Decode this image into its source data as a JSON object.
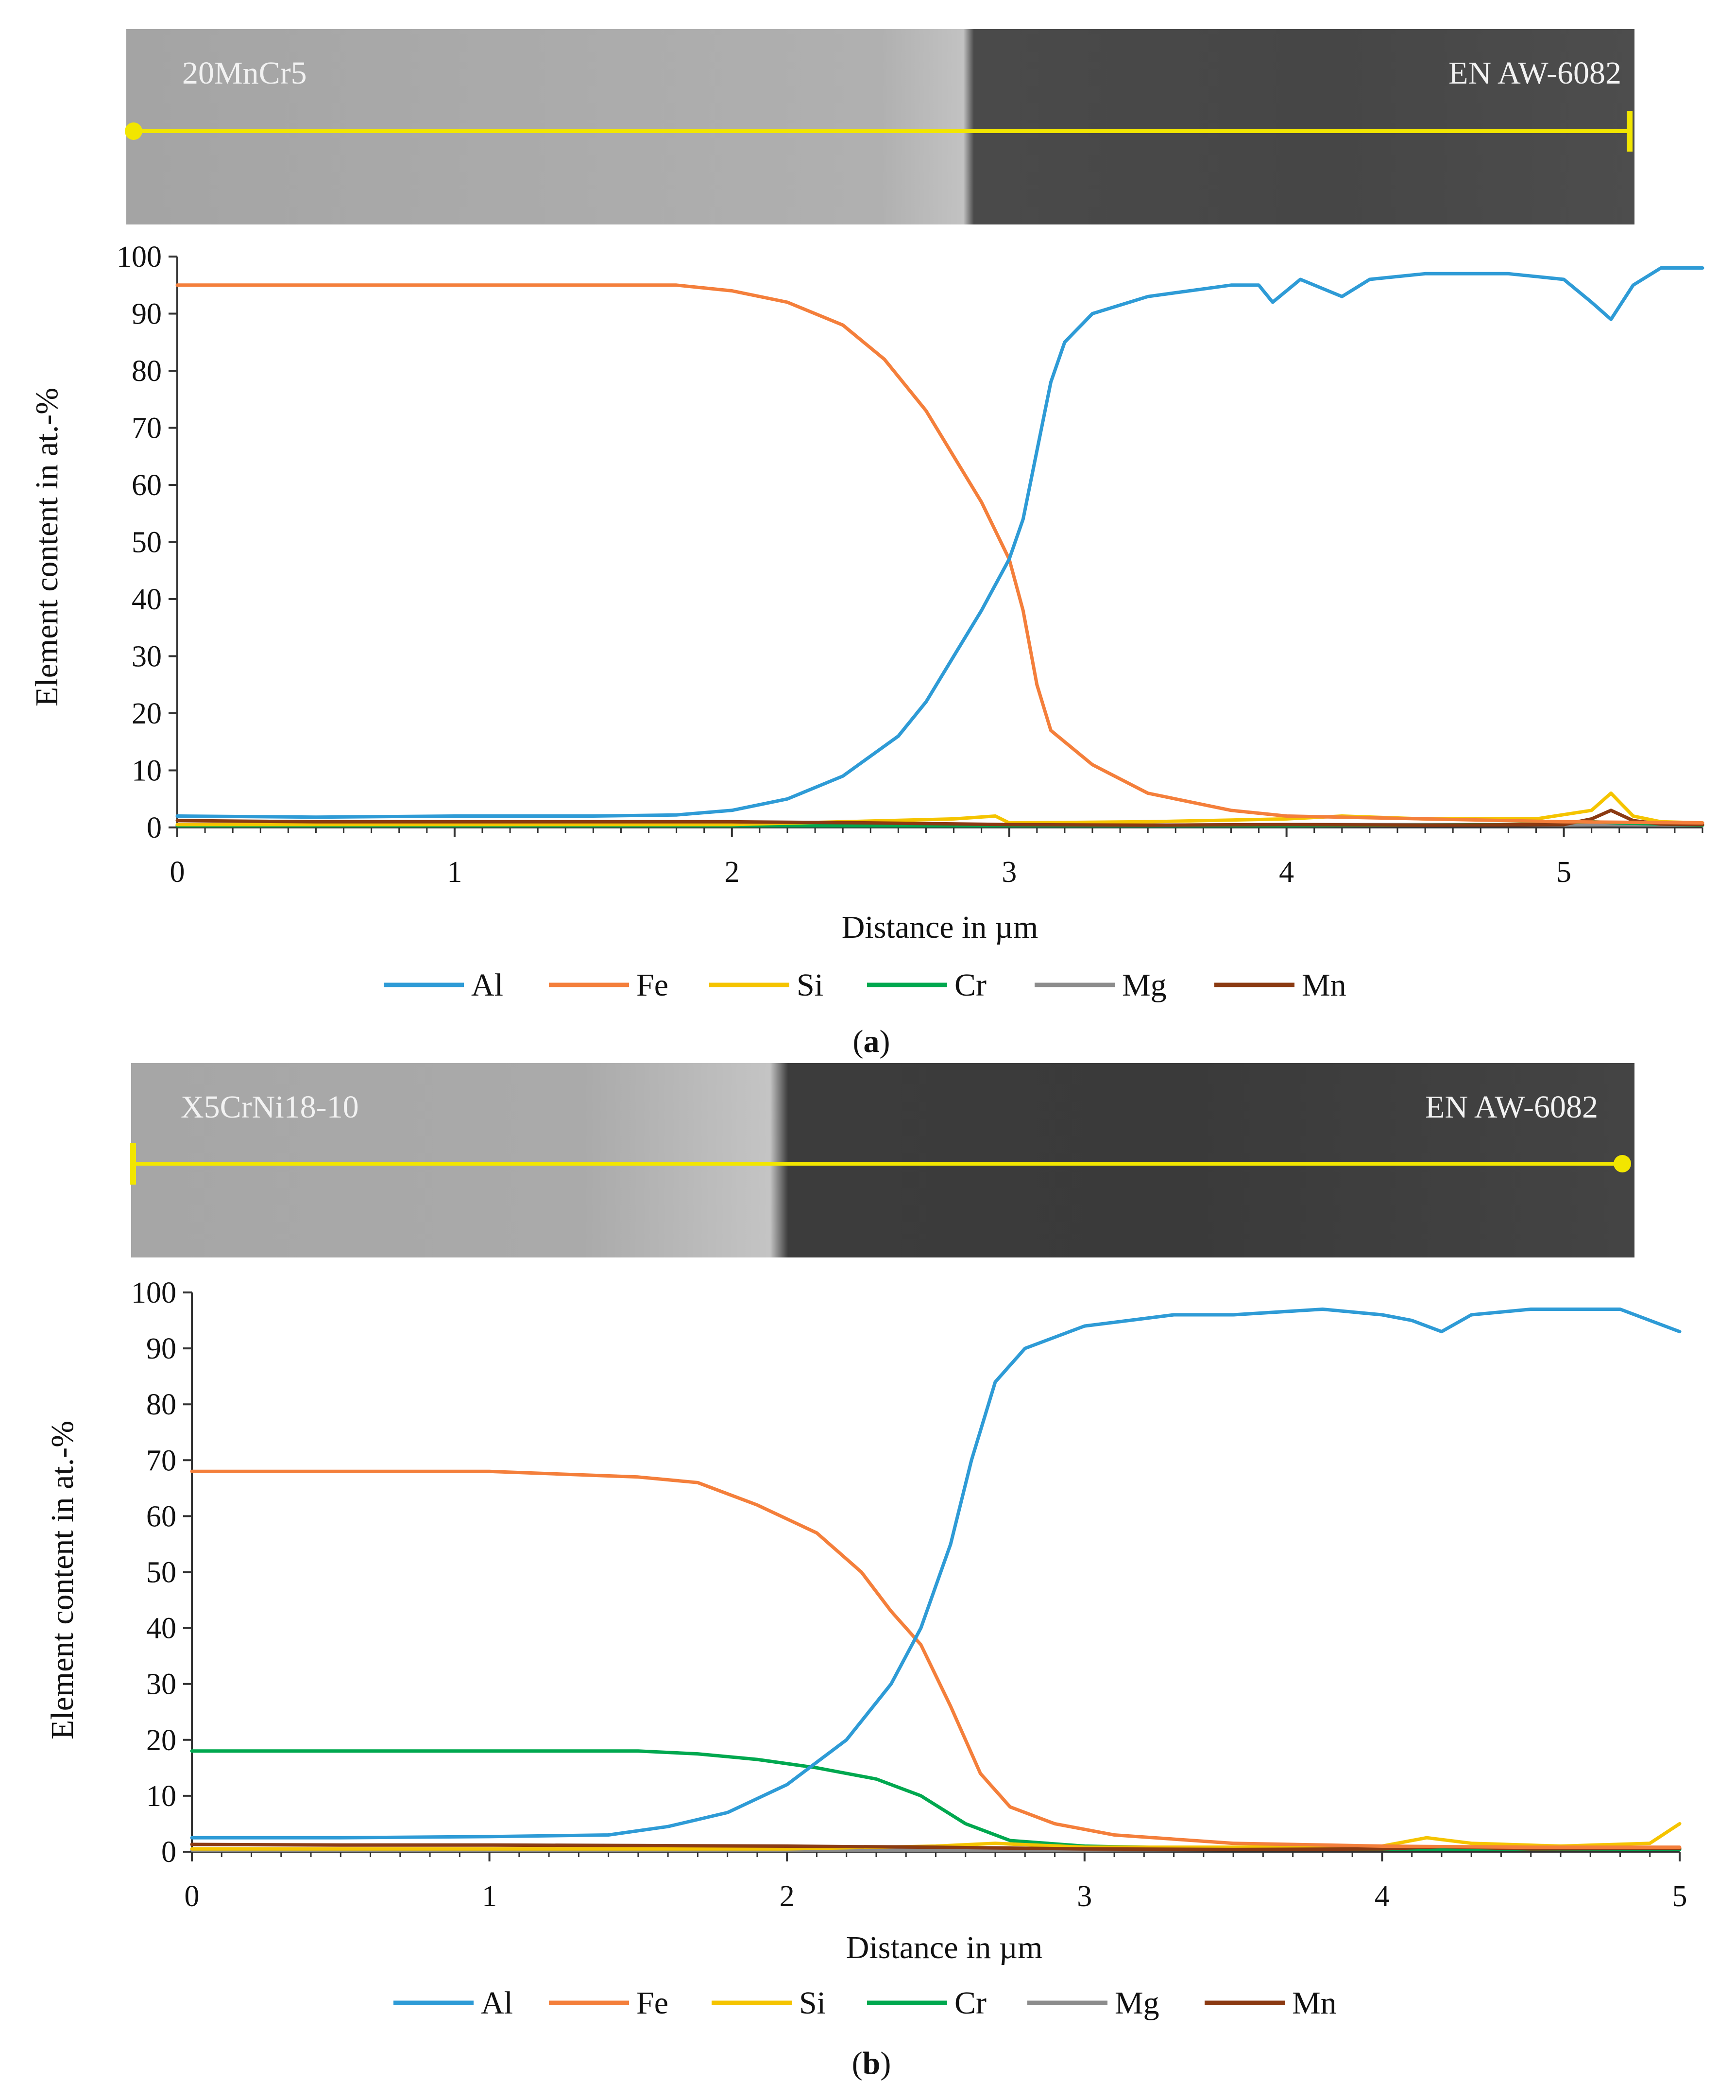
{
  "figure": {
    "panel_a_label": "a",
    "panel_b_label": "b"
  },
  "colors": {
    "Al": "#2e9bd6",
    "Fe": "#f47f3b",
    "Si": "#f5c400",
    "Cr": "#00a84f",
    "Mg": "#8c8c8c",
    "Mn": "#8b3a12",
    "scan_line": "#f2e600"
  },
  "chart_data": [
    {
      "type": "line",
      "panel": "a",
      "sem_left_label": "20MnCr5",
      "sem_right_label": "EN AW-6082",
      "xlabel": "Distance in µm",
      "ylabel": "Element content in at.-%",
      "xlim": [
        0,
        5.5
      ],
      "ylim": [
        0,
        100
      ],
      "x_ticks": [
        "0",
        "1",
        "2",
        "3",
        "4",
        "5"
      ],
      "y_ticks": [
        "0",
        "10",
        "20",
        "30",
        "40",
        "50",
        "60",
        "70",
        "80",
        "90",
        "100"
      ],
      "legend": [
        "Al",
        "Fe",
        "Si",
        "Cr",
        "Mg",
        "Mn"
      ],
      "series": [
        {
          "name": "Al",
          "points": [
            [
              0,
              2
            ],
            [
              0.5,
              1.8
            ],
            [
              1,
              2
            ],
            [
              1.5,
              2
            ],
            [
              1.8,
              2.2
            ],
            [
              2,
              3
            ],
            [
              2.2,
              5
            ],
            [
              2.4,
              9
            ],
            [
              2.6,
              16
            ],
            [
              2.7,
              22
            ],
            [
              2.8,
              30
            ],
            [
              2.9,
              38
            ],
            [
              3.0,
              47
            ],
            [
              3.05,
              54
            ],
            [
              3.1,
              66
            ],
            [
              3.15,
              78
            ],
            [
              3.2,
              85
            ],
            [
              3.3,
              90
            ],
            [
              3.5,
              93
            ],
            [
              3.8,
              95
            ],
            [
              3.9,
              95
            ],
            [
              3.95,
              92
            ],
            [
              4.05,
              96
            ],
            [
              4.2,
              93
            ],
            [
              4.3,
              96
            ],
            [
              4.5,
              97
            ],
            [
              4.8,
              97
            ],
            [
              5.0,
              96
            ],
            [
              5.1,
              92
            ],
            [
              5.17,
              89
            ],
            [
              5.25,
              95
            ],
            [
              5.35,
              98
            ],
            [
              5.5,
              98
            ]
          ]
        },
        {
          "name": "Fe",
          "points": [
            [
              0,
              95
            ],
            [
              0.5,
              95
            ],
            [
              1,
              95
            ],
            [
              1.5,
              95
            ],
            [
              1.8,
              95
            ],
            [
              2,
              94
            ],
            [
              2.2,
              92
            ],
            [
              2.4,
              88
            ],
            [
              2.55,
              82
            ],
            [
              2.7,
              73
            ],
            [
              2.8,
              65
            ],
            [
              2.9,
              57
            ],
            [
              3.0,
              47
            ],
            [
              3.05,
              38
            ],
            [
              3.1,
              25
            ],
            [
              3.15,
              17
            ],
            [
              3.3,
              11
            ],
            [
              3.5,
              6
            ],
            [
              3.8,
              3
            ],
            [
              4.0,
              2
            ],
            [
              4.5,
              1.5
            ],
            [
              5.0,
              1
            ],
            [
              5.5,
              0.8
            ]
          ]
        },
        {
          "name": "Si",
          "points": [
            [
              0,
              0.5
            ],
            [
              1,
              0.5
            ],
            [
              2,
              0.5
            ],
            [
              2.8,
              1.5
            ],
            [
              2.95,
              2
            ],
            [
              3.0,
              0.8
            ],
            [
              3.5,
              1
            ],
            [
              4.0,
              1.5
            ],
            [
              4.2,
              2
            ],
            [
              4.5,
              1.5
            ],
            [
              4.9,
              1.5
            ],
            [
              5.1,
              3
            ],
            [
              5.17,
              6
            ],
            [
              5.25,
              2
            ],
            [
              5.35,
              1
            ],
            [
              5.5,
              0.8
            ]
          ]
        },
        {
          "name": "Cr",
          "points": [
            [
              0,
              0.3
            ],
            [
              1,
              0.3
            ],
            [
              2,
              0.3
            ],
            [
              3,
              0.3
            ],
            [
              4,
              0.3
            ],
            [
              4.8,
              0.5
            ],
            [
              5.0,
              0.8
            ],
            [
              5.1,
              1
            ],
            [
              5.2,
              0.8
            ],
            [
              5.5,
              0.4
            ]
          ]
        },
        {
          "name": "Mg",
          "points": [
            [
              0,
              0.3
            ],
            [
              1,
              0.3
            ],
            [
              2,
              0.3
            ],
            [
              3,
              0.3
            ],
            [
              4,
              0.5
            ],
            [
              5,
              0.5
            ],
            [
              5.5,
              0.4
            ]
          ]
        },
        {
          "name": "Mn",
          "points": [
            [
              0,
              1.2
            ],
            [
              0.5,
              1
            ],
            [
              1,
              1
            ],
            [
              1.5,
              1
            ],
            [
              2,
              1
            ],
            [
              2.5,
              0.8
            ],
            [
              3,
              0.5
            ],
            [
              3.5,
              0.4
            ],
            [
              4,
              0.5
            ],
            [
              4.5,
              0.4
            ],
            [
              5.0,
              0.5
            ],
            [
              5.1,
              1.5
            ],
            [
              5.17,
              3
            ],
            [
              5.25,
              1.2
            ],
            [
              5.35,
              0.6
            ],
            [
              5.5,
              0.5
            ]
          ]
        }
      ]
    },
    {
      "type": "line",
      "panel": "b",
      "sem_left_label": "X5CrNi18-10",
      "sem_right_label": "EN AW-6082",
      "xlabel": "Distance in µm",
      "ylabel": "Element content in at.-%",
      "xlim": [
        0,
        5
      ],
      "ylim": [
        0,
        100
      ],
      "x_ticks": [
        "0",
        "1",
        "2",
        "3",
        "4",
        "5"
      ],
      "y_ticks": [
        "0",
        "10",
        "20",
        "30",
        "40",
        "50",
        "60",
        "70",
        "80",
        "90",
        "100"
      ],
      "legend": [
        "Al",
        "Fe",
        "Si",
        "Cr",
        "Mg",
        "Mn"
      ],
      "series": [
        {
          "name": "Al",
          "points": [
            [
              0,
              2.5
            ],
            [
              0.5,
              2.5
            ],
            [
              1,
              2.7
            ],
            [
              1.4,
              3
            ],
            [
              1.6,
              4.5
            ],
            [
              1.8,
              7
            ],
            [
              2.0,
              12
            ],
            [
              2.2,
              20
            ],
            [
              2.35,
              30
            ],
            [
              2.45,
              40
            ],
            [
              2.55,
              55
            ],
            [
              2.62,
              70
            ],
            [
              2.7,
              84
            ],
            [
              2.8,
              90
            ],
            [
              3.0,
              94
            ],
            [
              3.3,
              96
            ],
            [
              3.5,
              96
            ],
            [
              3.8,
              97
            ],
            [
              4.0,
              96
            ],
            [
              4.1,
              95
            ],
            [
              4.2,
              93
            ],
            [
              4.3,
              96
            ],
            [
              4.5,
              97
            ],
            [
              4.8,
              97
            ],
            [
              5.0,
              93
            ]
          ]
        },
        {
          "name": "Fe",
          "points": [
            [
              0,
              68
            ],
            [
              0.5,
              68
            ],
            [
              1,
              68
            ],
            [
              1.5,
              67
            ],
            [
              1.7,
              66
            ],
            [
              1.9,
              62
            ],
            [
              2.1,
              57
            ],
            [
              2.25,
              50
            ],
            [
              2.35,
              43
            ],
            [
              2.45,
              37
            ],
            [
              2.55,
              26
            ],
            [
              2.65,
              14
            ],
            [
              2.75,
              8
            ],
            [
              2.9,
              5
            ],
            [
              3.1,
              3
            ],
            [
              3.5,
              1.5
            ],
            [
              4.0,
              1
            ],
            [
              4.5,
              0.8
            ],
            [
              5.0,
              0.8
            ]
          ]
        },
        {
          "name": "Si",
          "points": [
            [
              0,
              0.5
            ],
            [
              1,
              0.5
            ],
            [
              2,
              0.5
            ],
            [
              2.5,
              1
            ],
            [
              2.7,
              1.5
            ],
            [
              3.0,
              0.8
            ],
            [
              3.5,
              0.8
            ],
            [
              4.0,
              1
            ],
            [
              4.15,
              2.5
            ],
            [
              4.3,
              1.5
            ],
            [
              4.6,
              1
            ],
            [
              4.9,
              1.5
            ],
            [
              5.0,
              5
            ]
          ]
        },
        {
          "name": "Cr",
          "points": [
            [
              0,
              18
            ],
            [
              0.5,
              18
            ],
            [
              1,
              18
            ],
            [
              1.5,
              18
            ],
            [
              1.7,
              17.5
            ],
            [
              1.9,
              16.5
            ],
            [
              2.1,
              15
            ],
            [
              2.3,
              13
            ],
            [
              2.45,
              10
            ],
            [
              2.6,
              5
            ],
            [
              2.75,
              2
            ],
            [
              3.0,
              1
            ],
            [
              3.5,
              0.5
            ],
            [
              4.0,
              0.4
            ],
            [
              5.0,
              0.4
            ]
          ]
        },
        {
          "name": "Mg",
          "points": [
            [
              0,
              0.3
            ],
            [
              1,
              0.3
            ],
            [
              2,
              0.3
            ],
            [
              3,
              0.3
            ],
            [
              4,
              0.5
            ],
            [
              5,
              0.5
            ]
          ]
        },
        {
          "name": "Mn",
          "points": [
            [
              0,
              1.3
            ],
            [
              0.5,
              1.2
            ],
            [
              1,
              1.2
            ],
            [
              1.5,
              1.1
            ],
            [
              2,
              1
            ],
            [
              2.5,
              0.8
            ],
            [
              3,
              0.5
            ],
            [
              3.5,
              0.4
            ],
            [
              4,
              0.5
            ],
            [
              4.2,
              0.9
            ],
            [
              4.5,
              0.5
            ],
            [
              5,
              0.6
            ]
          ]
        }
      ]
    }
  ]
}
